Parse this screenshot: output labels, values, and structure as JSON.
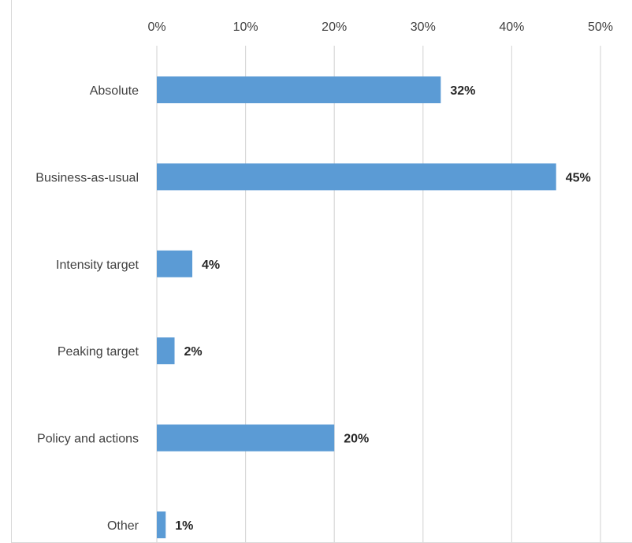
{
  "chart_data": {
    "type": "bar",
    "orientation": "horizontal",
    "categories": [
      "Absolute",
      "Business-as-usual",
      "Intensity target",
      "Peaking target",
      "Policy and actions",
      "Other"
    ],
    "values": [
      32,
      45,
      4,
      2,
      20,
      1
    ],
    "data_labels": [
      "32%",
      "45%",
      "4%",
      "2%",
      "20%",
      "1%"
    ],
    "x_ticks": [
      "0%",
      "10%",
      "20%",
      "30%",
      "40%",
      "50%"
    ],
    "xlim": [
      0,
      50
    ],
    "x_axis_position": "top",
    "grid": true,
    "legend": "none",
    "title": "",
    "xlabel": "",
    "ylabel": "",
    "bar_color": "#5b9bd5"
  }
}
